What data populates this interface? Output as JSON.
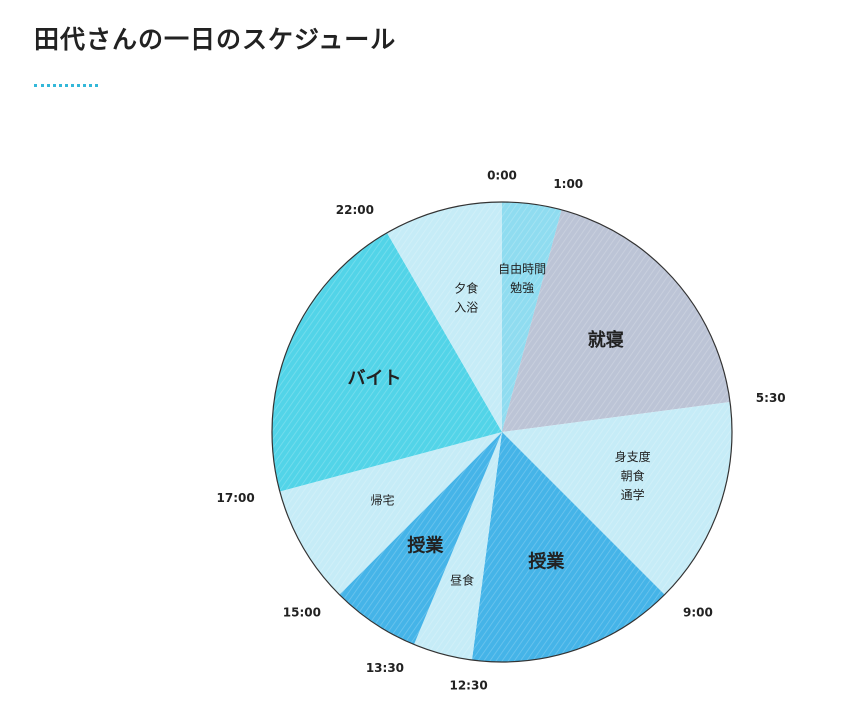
{
  "title": "田代さんの一日のスケジュール",
  "colors": {
    "accent": "#33b8d9"
  },
  "chart_data": {
    "type": "pie",
    "title": "田代さんの一日のスケジュール",
    "unit": "hours",
    "slices": [
      {
        "label": [
          "自由時間",
          "勉強"
        ],
        "start": "0:00",
        "end": "1:00",
        "hours": 1,
        "color": "#8fdcf0"
      },
      {
        "label": [
          "就寝"
        ],
        "start": "1:00",
        "end": "5:30",
        "hours": 4.5,
        "color": "#bcc4d6"
      },
      {
        "label": [
          "身支度",
          "朝食",
          "通学"
        ],
        "start": "5:30",
        "end": "9:00",
        "hours": 3.5,
        "color": "#c6ecf7"
      },
      {
        "label": [
          "授業"
        ],
        "start": "9:00",
        "end": "12:30",
        "hours": 3.5,
        "color": "#45b4e8"
      },
      {
        "label": [
          "昼食"
        ],
        "start": "12:30",
        "end": "13:30",
        "hours": 1,
        "color": "#c6ecf7"
      },
      {
        "label": [
          "授業"
        ],
        "start": "13:30",
        "end": "15:00",
        "hours": 1.5,
        "color": "#45b4e8"
      },
      {
        "label": [
          "帰宅"
        ],
        "start": "15:00",
        "end": "17:00",
        "hours": 2,
        "color": "#c6ecf7"
      },
      {
        "label": [
          "バイト"
        ],
        "start": "17:00",
        "end": "22:00",
        "hours": 5,
        "color": "#52d4e8"
      },
      {
        "label": [
          "夕食",
          "入浴"
        ],
        "start": "22:00",
        "end": "24:00",
        "hours": 2,
        "color": "#c6ecf7"
      }
    ],
    "time_labels": [
      "0:00",
      "1:00",
      "5:30",
      "9:00",
      "12:30",
      "13:30",
      "15:00",
      "17:00",
      "22:00"
    ]
  }
}
